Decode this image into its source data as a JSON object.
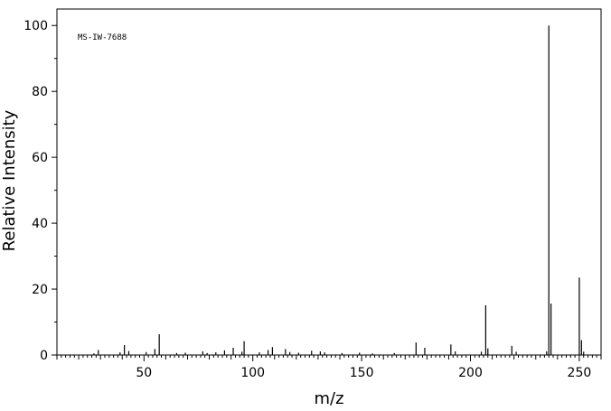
{
  "chart_data": {
    "type": "bar",
    "title": "",
    "annotation": "MS-IW-7688",
    "xlabel": "m/z",
    "ylabel": "Relative Intensity",
    "xlim": [
      10,
      260
    ],
    "ylim": [
      0,
      105
    ],
    "x_ticks": [
      50,
      100,
      150,
      200,
      250
    ],
    "y_ticks": [
      0,
      20,
      40,
      60,
      80,
      100
    ],
    "grid": false,
    "series": [
      {
        "x": [
          27,
          29,
          39,
          41,
          43,
          51,
          55,
          57,
          65,
          69,
          77,
          79,
          83,
          87,
          91,
          95,
          96,
          103,
          107,
          109,
          115,
          117,
          121,
          127,
          131,
          133,
          141,
          149,
          155,
          165,
          175,
          179,
          191,
          193,
          205,
          207,
          208,
          219,
          221,
          235,
          236,
          237,
          250,
          251,
          252
        ],
        "values": [
          0.5,
          1.5,
          0.8,
          3.0,
          1.2,
          0.9,
          1.8,
          6.3,
          0.6,
          0.7,
          1.1,
          0.6,
          0.8,
          1.4,
          2.2,
          1.0,
          4.2,
          0.8,
          1.5,
          2.4,
          1.8,
          0.9,
          0.7,
          1.3,
          1.1,
          0.8,
          0.6,
          0.7,
          0.5,
          0.6,
          3.8,
          2.2,
          3.2,
          1.1,
          1.0,
          15.1,
          2.0,
          2.8,
          1.0,
          1.1,
          100.0,
          15.6,
          23.5,
          4.5,
          1.0
        ]
      }
    ]
  }
}
